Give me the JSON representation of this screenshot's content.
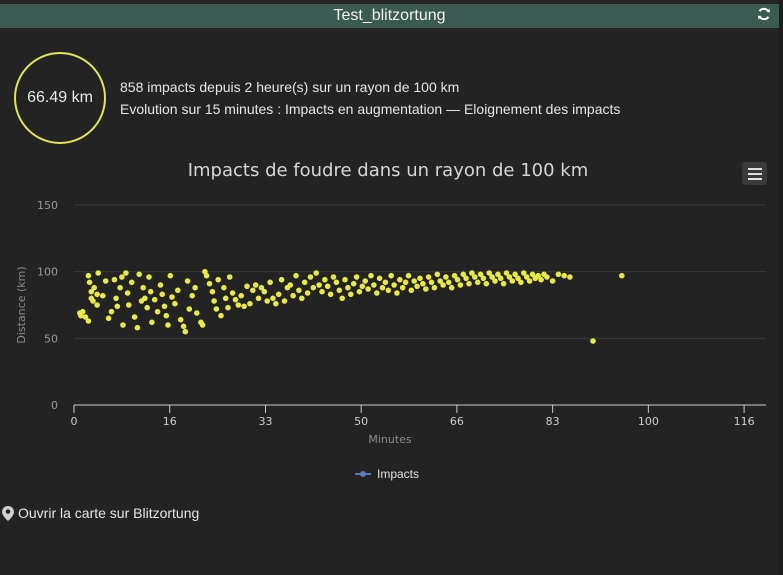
{
  "header": {
    "title": "Test_blitzortung",
    "refresh_icon": "refresh-icon"
  },
  "gauge": {
    "value": "66.49 km"
  },
  "info": {
    "line1": "858 impacts depuis 2 heure(s) sur un rayon de 100 km",
    "line2": "Evolution sur 15 minutes : Impacts en augmentation — Eloignement des impacts"
  },
  "footer": {
    "map_link": "Ouvrir la carte sur Blitzortung",
    "map_icon": "map-marker-icon"
  },
  "colors": {
    "point": "#e8e84a",
    "accent": "#3b5a52",
    "legend": "#5a7bb8"
  },
  "chart_data": {
    "type": "scatter",
    "title": "Impacts de foudre dans un rayon de 100 km",
    "xlabel": "Minutes",
    "ylabel": "Distance (km)",
    "xlim": [
      0,
      120
    ],
    "ylim": [
      0,
      150
    ],
    "x_ticks": [
      "0",
      "16",
      "33",
      "50",
      "66",
      "83",
      "100",
      "116"
    ],
    "x_tick_values": [
      0,
      16.6,
      33.2,
      49.8,
      66.4,
      83,
      99.6,
      116.2
    ],
    "y_ticks": [
      "0",
      "50",
      "100",
      "150"
    ],
    "y_tick_values": [
      0,
      50,
      100,
      150
    ],
    "legend": {
      "position": "bottom-center",
      "entries": [
        "Impacts"
      ]
    },
    "grid": true,
    "series": [
      {
        "name": "Impacts",
        "points": [
          [
            1,
            69
          ],
          [
            1.2,
            67
          ],
          [
            1.5,
            70
          ],
          [
            2,
            66
          ],
          [
            2.5,
            63
          ],
          [
            2.5,
            97
          ],
          [
            2.7,
            92
          ],
          [
            3,
            85
          ],
          [
            3,
            80
          ],
          [
            3.3,
            78
          ],
          [
            3.5,
            88
          ],
          [
            4,
            83
          ],
          [
            4,
            75
          ],
          [
            4.2,
            99
          ],
          [
            5,
            82
          ],
          [
            5.5,
            93
          ],
          [
            6,
            65
          ],
          [
            6.5,
            70
          ],
          [
            7,
            94
          ],
          [
            7.3,
            80
          ],
          [
            7.5,
            74
          ],
          [
            8,
            88
          ],
          [
            8.3,
            96
          ],
          [
            8.5,
            60
          ],
          [
            9,
            99
          ],
          [
            9.3,
            84
          ],
          [
            9.5,
            75
          ],
          [
            10,
            92
          ],
          [
            10.5,
            66
          ],
          [
            11,
            58
          ],
          [
            11.3,
            98
          ],
          [
            11.7,
            78
          ],
          [
            12,
            88
          ],
          [
            12.3,
            80
          ],
          [
            12.7,
            73
          ],
          [
            13,
            96
          ],
          [
            13.3,
            85
          ],
          [
            13.5,
            62
          ],
          [
            14,
            79
          ],
          [
            14.5,
            70
          ],
          [
            15,
            90
          ],
          [
            15.3,
            83
          ],
          [
            15.7,
            74
          ],
          [
            16,
            67
          ],
          [
            16.3,
            60
          ],
          [
            16.7,
            97
          ],
          [
            17,
            81
          ],
          [
            17.5,
            76
          ],
          [
            18,
            86
          ],
          [
            18.5,
            64
          ],
          [
            19,
            59
          ],
          [
            19.3,
            55
          ],
          [
            19.7,
            93
          ],
          [
            20,
            72
          ],
          [
            20.5,
            82
          ],
          [
            21,
            88
          ],
          [
            21.3,
            69
          ],
          [
            22,
            62
          ],
          [
            22.3,
            60
          ],
          [
            22.7,
            100
          ],
          [
            23,
            97
          ],
          [
            23.5,
            91
          ],
          [
            24,
            85
          ],
          [
            24.3,
            78
          ],
          [
            24.7,
            72
          ],
          [
            25,
            94
          ],
          [
            25.5,
            67
          ],
          [
            26,
            88
          ],
          [
            26.3,
            80
          ],
          [
            26.7,
            73
          ],
          [
            27,
            96
          ],
          [
            27.5,
            84
          ],
          [
            28,
            79
          ],
          [
            28.5,
            75
          ],
          [
            29,
            82
          ],
          [
            29.5,
            74
          ],
          [
            30,
            89
          ],
          [
            30.5,
            76
          ],
          [
            31,
            86
          ],
          [
            31.5,
            90
          ],
          [
            32,
            80
          ],
          [
            32.5,
            88
          ],
          [
            33,
            85
          ],
          [
            33.5,
            78
          ],
          [
            34,
            92
          ],
          [
            34.5,
            80
          ],
          [
            35,
            76
          ],
          [
            35.5,
            83
          ],
          [
            36,
            94
          ],
          [
            36.5,
            78
          ],
          [
            37,
            88
          ],
          [
            37.5,
            90
          ],
          [
            38,
            82
          ],
          [
            38.5,
            97
          ],
          [
            39,
            86
          ],
          [
            39.5,
            80
          ],
          [
            40,
            92
          ],
          [
            40.5,
            84
          ],
          [
            41,
            96
          ],
          [
            41.5,
            88
          ],
          [
            42,
            99
          ],
          [
            42.5,
            90
          ],
          [
            43,
            85
          ],
          [
            43.5,
            94
          ],
          [
            44,
            89
          ],
          [
            44.5,
            83
          ],
          [
            45,
            96
          ],
          [
            45.5,
            92
          ],
          [
            46,
            86
          ],
          [
            46.5,
            80
          ],
          [
            47,
            94
          ],
          [
            47.5,
            88
          ],
          [
            48,
            83
          ],
          [
            48.5,
            91
          ],
          [
            49,
            96
          ],
          [
            49.5,
            85
          ],
          [
            50,
            89
          ],
          [
            50.5,
            93
          ],
          [
            51,
            87
          ],
          [
            51.5,
            97
          ],
          [
            52,
            90
          ],
          [
            52.5,
            84
          ],
          [
            53,
            95
          ],
          [
            53.5,
            88
          ],
          [
            54,
            92
          ],
          [
            54.5,
            86
          ],
          [
            55,
            97
          ],
          [
            55.5,
            90
          ],
          [
            56,
            84
          ],
          [
            56.5,
            94
          ],
          [
            57,
            88
          ],
          [
            57.5,
            92
          ],
          [
            58,
            97
          ],
          [
            58.5,
            86
          ],
          [
            59,
            93
          ],
          [
            59.5,
            89
          ],
          [
            60,
            95
          ],
          [
            60.5,
            91
          ],
          [
            61,
            87
          ],
          [
            61.5,
            96
          ],
          [
            62,
            92
          ],
          [
            62.5,
            88
          ],
          [
            63,
            98
          ],
          [
            63.5,
            93
          ],
          [
            64,
            90
          ],
          [
            64.5,
            96
          ],
          [
            65,
            92
          ],
          [
            65.5,
            88
          ],
          [
            66,
            97
          ],
          [
            66.5,
            94
          ],
          [
            67,
            90
          ],
          [
            67.5,
            98
          ],
          [
            68,
            95
          ],
          [
            68.5,
            91
          ],
          [
            69,
            99
          ],
          [
            69.5,
            96
          ],
          [
            70,
            92
          ],
          [
            70.5,
            98
          ],
          [
            71,
            95
          ],
          [
            71.5,
            91
          ],
          [
            72,
            99
          ],
          [
            72.5,
            96
          ],
          [
            73,
            93
          ],
          [
            73.5,
            98
          ],
          [
            74,
            95
          ],
          [
            74.5,
            91
          ],
          [
            75,
            99
          ],
          [
            75.5,
            96
          ],
          [
            76,
            93
          ],
          [
            76.5,
            98
          ],
          [
            77,
            95
          ],
          [
            77.5,
            92
          ],
          [
            78,
            99
          ],
          [
            78.5,
            96
          ],
          [
            79,
            93
          ],
          [
            79.5,
            98
          ],
          [
            80,
            95
          ],
          [
            80.5,
            97
          ],
          [
            81,
            94
          ],
          [
            81.5,
            98
          ],
          [
            82,
            96
          ],
          [
            83,
            93
          ],
          [
            84,
            98
          ],
          [
            85,
            97
          ],
          [
            86,
            96
          ],
          [
            90,
            48
          ],
          [
            95,
            97
          ]
        ]
      }
    ]
  }
}
